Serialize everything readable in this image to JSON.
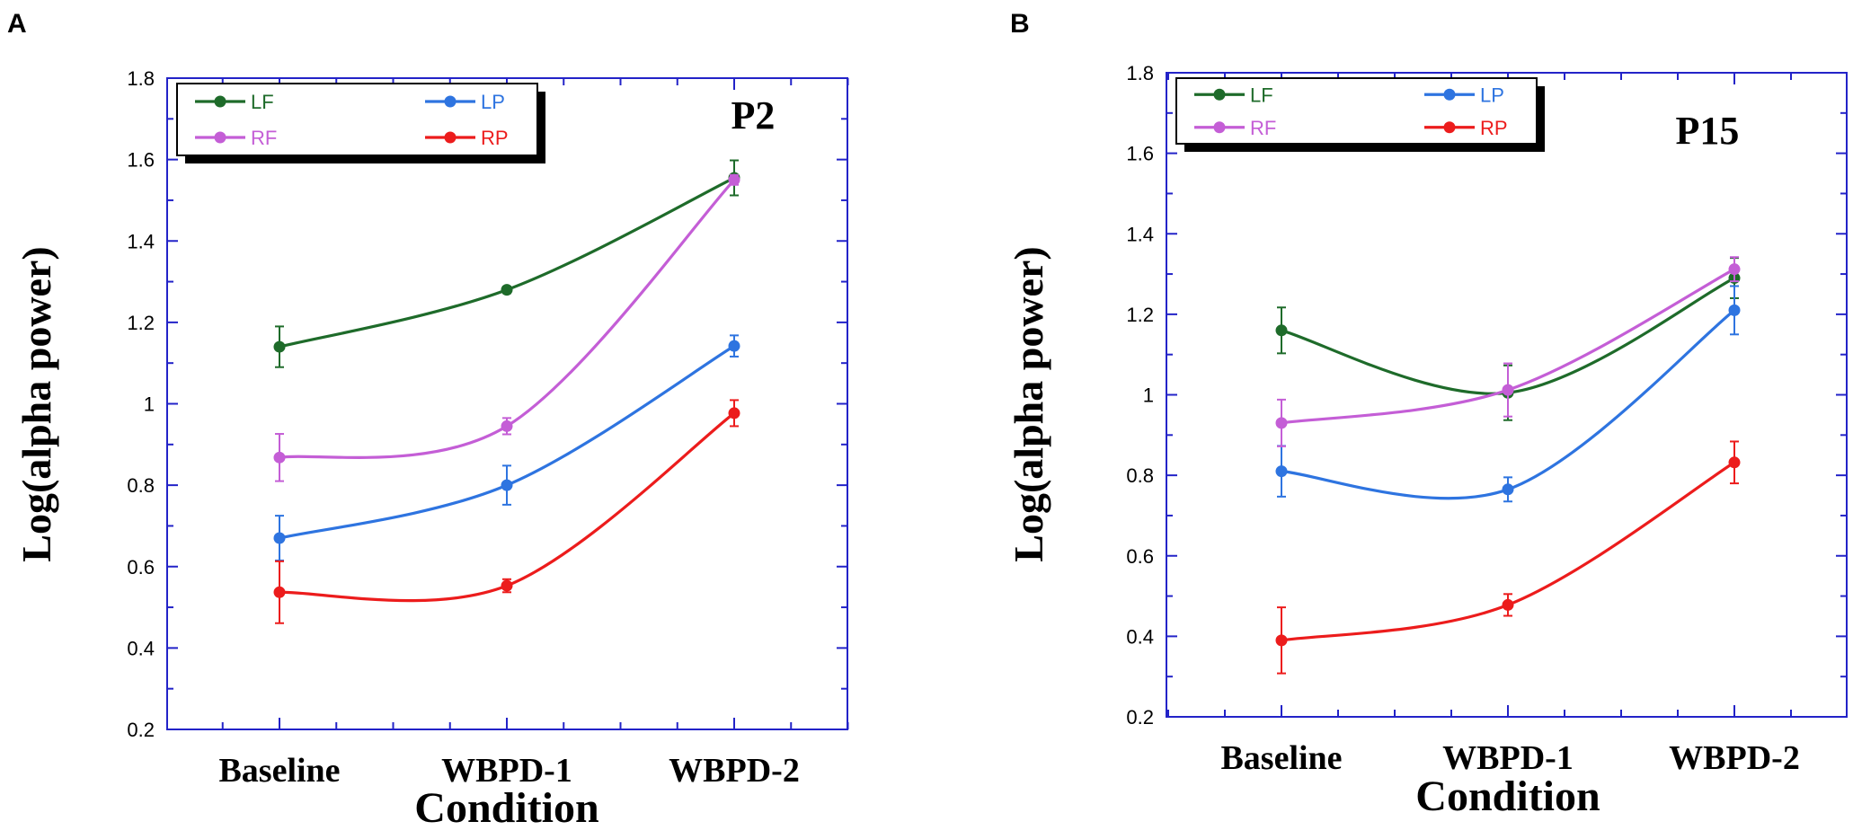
{
  "chart_data": [
    {
      "type": "line",
      "panel_label": "A",
      "title": "P2",
      "xlabel": "Condition",
      "ylabel": "Log(alpha power)",
      "categories": [
        "Baseline",
        "WBPD-1",
        "WBPD-2"
      ],
      "ylim": [
        0.2,
        1.8
      ],
      "yticks": [
        "0.2",
        "0.4",
        "0.6",
        "0.8",
        "1",
        "1.2",
        "1.4",
        "1.6",
        "1.8"
      ],
      "legend_position": "top-left",
      "series": [
        {
          "name": "LF",
          "color": "#1e6b2a",
          "values": [
            1.14,
            1.28,
            1.555
          ],
          "errors": [
            0.05,
            0.008,
            0.043
          ]
        },
        {
          "name": "LP",
          "color": "#2e74e0",
          "values": [
            0.67,
            0.8,
            1.142
          ],
          "errors": [
            0.055,
            0.048,
            0.026
          ]
        },
        {
          "name": "RF",
          "color": "#c45ed6",
          "values": [
            0.868,
            0.945,
            1.55
          ],
          "errors": [
            0.058,
            0.02,
            0.012
          ]
        },
        {
          "name": "RP",
          "color": "#ec1c1c",
          "values": [
            0.537,
            0.553,
            0.977
          ],
          "errors": [
            0.076,
            0.016,
            0.032
          ]
        }
      ]
    },
    {
      "type": "line",
      "panel_label": "B",
      "title": "P15",
      "xlabel": "Condition",
      "ylabel": "Log(alpha power)",
      "categories": [
        "Baseline",
        "WBPD-1",
        "WBPD-2"
      ],
      "ylim": [
        0.2,
        1.8
      ],
      "yticks": [
        "0.2",
        "0.4",
        "0.6",
        "0.8",
        "1",
        "1.2",
        "1.4",
        "1.6",
        "1.8"
      ],
      "legend_position": "top-left",
      "series": [
        {
          "name": "LF",
          "color": "#1e6b2a",
          "values": [
            1.16,
            1.005,
            1.29
          ],
          "errors": [
            0.057,
            0.068,
            0.05
          ]
        },
        {
          "name": "LP",
          "color": "#2e74e0",
          "values": [
            0.81,
            0.765,
            1.21
          ],
          "errors": [
            0.063,
            0.03,
            0.06
          ]
        },
        {
          "name": "RF",
          "color": "#c45ed6",
          "values": [
            0.93,
            1.012,
            1.312
          ],
          "errors": [
            0.058,
            0.066,
            0.03
          ]
        },
        {
          "name": "RP",
          "color": "#ec1c1c",
          "values": [
            0.39,
            0.478,
            0.832
          ],
          "errors": [
            0.082,
            0.027,
            0.052
          ]
        }
      ]
    }
  ]
}
